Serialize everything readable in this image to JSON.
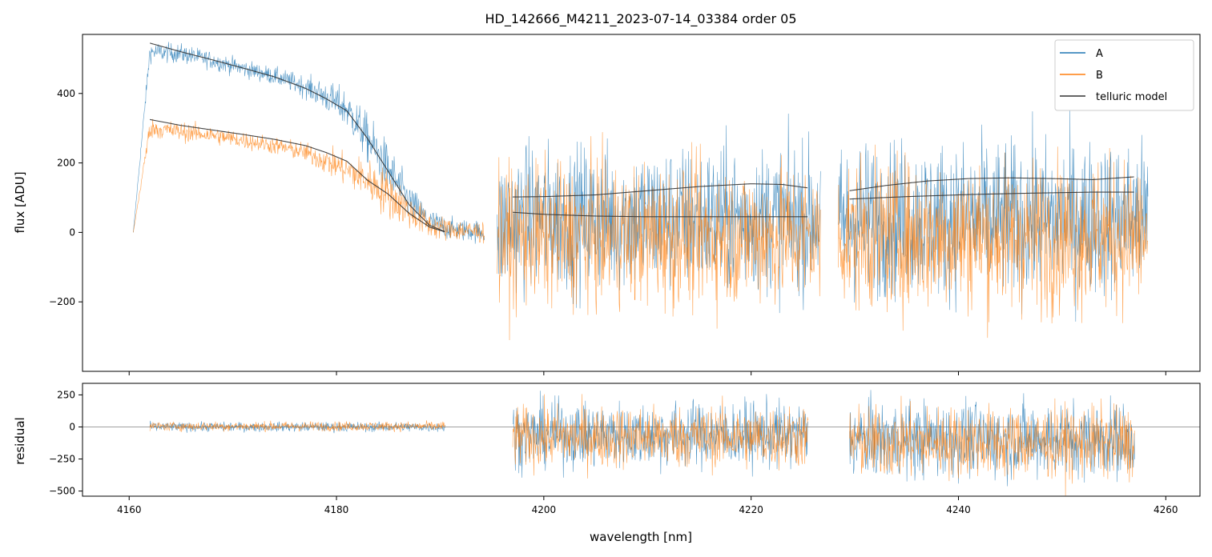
{
  "chart_data": {
    "type": "line",
    "title": "HD_142666_M4211_2023-07-14_03384  order 05",
    "xlabel": "wavelength [nm]",
    "xlim": [
      4155.5,
      4263.3
    ],
    "x_ticks": [
      4160,
      4180,
      4200,
      4220,
      4240,
      4260
    ],
    "x_tick_labels": [
      "4160",
      "4180",
      "4200",
      "4220",
      "4240",
      "4260"
    ],
    "colors": {
      "A": "#1f77b4",
      "B": "#ff7f0e",
      "model": "#333333",
      "zero_line": "#808080"
    },
    "panels": {
      "flux": {
        "ylabel": "flux [ADU]",
        "ylim": [
          -400,
          570
        ],
        "y_ticks": [
          -200,
          0,
          200,
          400
        ],
        "y_tick_labels": [
          "−200",
          "0",
          "200",
          "400"
        ],
        "legend_position": "upper right",
        "series": [
          {
            "name": "A",
            "segments": [
              {
                "x": [
                  4160.4,
                  4162,
                  4165,
                  4168,
                  4171,
                  4174,
                  4177,
                  4179,
                  4181,
                  4183,
                  4185,
                  4187,
                  4189,
                  4191,
                  4193,
                  4194.3
                ],
                "y": [
                  0,
                  520,
                  515,
                  495,
                  472,
                  450,
                  420,
                  390,
                  355,
                  270,
                  180,
                  90,
                  30,
                  10,
                  5,
                  0
                ],
                "noise": [
                  0,
                  22,
                  22,
                  20,
                  20,
                  20,
                  25,
                  35,
                  45,
                  55,
                  60,
                  40,
                  30,
                  25,
                  25,
                  25
                ]
              },
              {
                "x": [
                  4195.5,
                  4197,
                  4205,
                  4212,
                  4220,
                  4226.7
                ],
                "y": [
                  0,
                  40,
                  40,
                  40,
                  40,
                  40
                ],
                "noise": [
                  150,
                  165,
                  165,
                  165,
                  165,
                  165
                ]
              },
              {
                "x": [
                  4228.4,
                  4230,
                  4240,
                  4250,
                  4258.3
                ],
                "y": [
                  20,
                  40,
                  40,
                  40,
                  40
                ],
                "noise": [
                  165,
                  175,
                  175,
                  175,
                  175
                ]
              }
            ]
          },
          {
            "name": "B",
            "segments": [
              {
                "x": [
                  4160.4,
                  4162,
                  4165,
                  4168,
                  4171,
                  4174,
                  4177,
                  4179,
                  4181,
                  4183,
                  4185,
                  4187,
                  4189,
                  4191,
                  4193,
                  4194.3
                ],
                "y": [
                  0,
                  300,
                  290,
                  280,
                  265,
                  250,
                  230,
                  205,
                  180,
                  150,
                  110,
                  60,
                  20,
                  8,
                  4,
                  0
                ],
                "noise": [
                  0,
                  22,
                  22,
                  20,
                  20,
                  20,
                  22,
                  30,
                  38,
                  48,
                  55,
                  40,
                  30,
                  25,
                  25,
                  25
                ]
              },
              {
                "x": [
                  4195.5,
                  4197,
                  4205,
                  4212,
                  4220,
                  4226.7
                ],
                "y": [
                  -20,
                  -10,
                  -10,
                  -10,
                  -10,
                  -10
                ],
                "noise": [
                  150,
                  160,
                  160,
                  160,
                  160,
                  160
                ]
              },
              {
                "x": [
                  4228.4,
                  4230,
                  4240,
                  4250,
                  4258.3
                ],
                "y": [
                  -20,
                  -10,
                  -10,
                  -10,
                  -10
                ],
                "noise": [
                  160,
                  170,
                  170,
                  170,
                  170
                ]
              }
            ]
          },
          {
            "name": "telluric model",
            "segments": [
              {
                "x": [
                  4162,
                  4165,
                  4168,
                  4171,
                  4174,
                  4177,
                  4179,
                  4181,
                  4183,
                  4185,
                  4187,
                  4189,
                  4190.5
                ],
                "y": [
                  545,
                  520,
                  497,
                  473,
                  448,
                  415,
                  385,
                  350,
                  270,
                  175,
                  80,
                  20,
                  2
                ]
              },
              {
                "x": [
                  4162,
                  4165,
                  4168,
                  4171,
                  4174,
                  4177,
                  4179,
                  4181,
                  4183,
                  4185,
                  4187,
                  4189,
                  4190.5
                ],
                "y": [
                  325,
                  308,
                  295,
                  282,
                  268,
                  250,
                  230,
                  205,
                  150,
                  110,
                  55,
                  15,
                  1
                ]
              },
              {
                "x": [
                  4197,
                  4200,
                  4205,
                  4210,
                  4215,
                  4220,
                  4223,
                  4225.5
                ],
                "y": [
                  102,
                  103,
                  108,
                  120,
                  132,
                  140,
                  138,
                  128
                ]
              },
              {
                "x": [
                  4197,
                  4200,
                  4205,
                  4210,
                  4215,
                  4220,
                  4225.5
                ],
                "y": [
                  58,
                  52,
                  47,
                  45,
                  45,
                  45,
                  45
                ]
              },
              {
                "x": [
                  4229.5,
                  4233,
                  4237,
                  4241,
                  4245,
                  4249,
                  4253,
                  4257
                ],
                "y": [
                  120,
                  135,
                  148,
                  155,
                  157,
                  155,
                  152,
                  160
                ]
              },
              {
                "x": [
                  4229.5,
                  4235,
                  4241,
                  4247,
                  4253,
                  4257
                ],
                "y": [
                  96,
                  103,
                  109,
                  113,
                  116,
                  116
                ]
              }
            ]
          }
        ]
      },
      "residual": {
        "ylabel": "residual",
        "ylim": [
          -540,
          340
        ],
        "y_ticks": [
          -500,
          -250,
          0,
          250
        ],
        "y_tick_labels": [
          "−500",
          "−250",
          "0",
          "250"
        ],
        "zero_line": 0,
        "series": [
          {
            "name": "A",
            "segments": [
              {
                "x": [
                  4162,
                  4190.5
                ],
                "y": [
                  0,
                  0
                ],
                "noise": [
                  28,
                  30
                ]
              },
              {
                "x": [
                  4197,
                  4225.5
                ],
                "y": [
                  -60,
                  -60
                ],
                "noise": [
                  200,
                  200
                ]
              },
              {
                "x": [
                  4229.5,
                  4257
                ],
                "y": [
                  -100,
                  -100
                ],
                "noise": [
                  230,
                  230
                ]
              }
            ]
          },
          {
            "name": "B",
            "segments": [
              {
                "x": [
                  4162,
                  4190.5
                ],
                "y": [
                  5,
                  5
                ],
                "noise": [
                  28,
                  30
                ]
              },
              {
                "x": [
                  4197,
                  4225.5
                ],
                "y": [
                  -80,
                  -80
                ],
                "noise": [
                  190,
                  190
                ]
              },
              {
                "x": [
                  4229.5,
                  4257
                ],
                "y": [
                  -120,
                  -120
                ],
                "noise": [
                  220,
                  220
                ]
              }
            ]
          }
        ]
      }
    },
    "legend": [
      "A",
      "B",
      "telluric model"
    ]
  }
}
